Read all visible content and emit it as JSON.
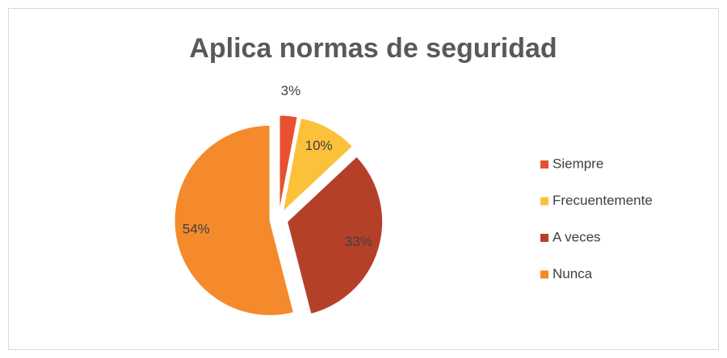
{
  "chart_data": {
    "type": "pie",
    "title": "Aplica normas de seguridad",
    "categories": [
      "Siempre",
      "Frecuentemente",
      "A veces",
      "Nunca"
    ],
    "values": [
      3,
      10,
      33,
      54
    ],
    "value_labels": [
      "3%",
      "10%",
      "33%",
      "54%"
    ],
    "colors": [
      "#e8502f",
      "#fcc13a",
      "#b5402a",
      "#f58a2d"
    ],
    "legend": "right"
  }
}
